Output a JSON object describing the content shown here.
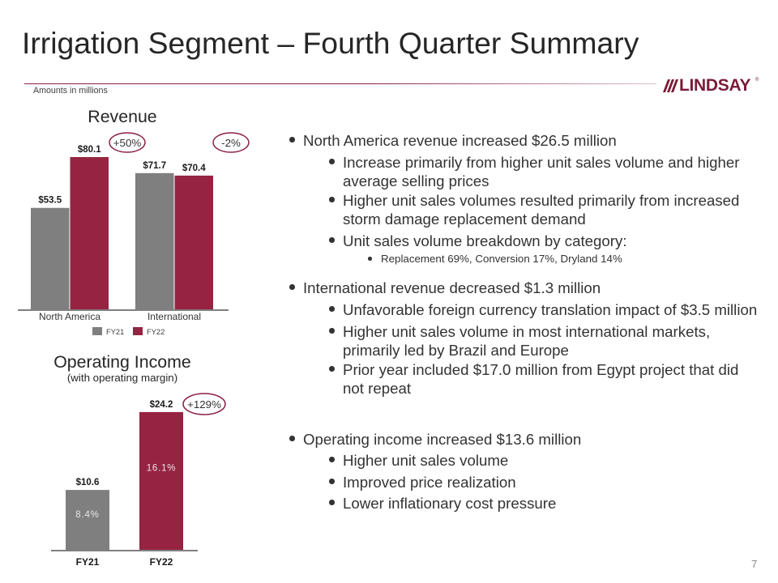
{
  "header": {
    "title": "Irrigation Segment – Fourth Quarter Summary",
    "units_note": "Amounts in millions"
  },
  "logo": {
    "text": "LINDSAY",
    "mark": "®",
    "color": "#7a1c38"
  },
  "footer": {
    "page_number": "7"
  },
  "bullets": [
    {
      "text": "North America revenue increased $26.5 million",
      "sub": [
        {
          "lines": [
            "Increase primarily from higher unit sales volume and higher",
            "average selling prices"
          ]
        },
        {
          "lines": [
            "Higher unit sales volumes resulted primarily from increased",
            "storm damage replacement demand"
          ]
        },
        {
          "lines": [
            "Unit sales volume breakdown by category:"
          ],
          "sub": [
            {
              "text": "Replacement 69%, Conversion 17%, Dryland 14%"
            }
          ]
        }
      ]
    },
    {
      "text": "International revenue decreased $1.3 million",
      "sub": [
        {
          "lines": [
            "Unfavorable foreign currency translation impact of $3.5 million"
          ]
        },
        {
          "lines": [
            "Higher unit sales volume in most international markets,",
            "primarily led by Brazil and Europe"
          ]
        },
        {
          "lines": [
            "Prior year included $17.0 million from Egypt project that did",
            "not repeat"
          ]
        }
      ]
    },
    {
      "text": "Operating income increased $13.6 million",
      "sub": [
        {
          "lines": [
            "Higher unit sales volume"
          ]
        },
        {
          "lines": [
            "Improved price realization"
          ]
        },
        {
          "lines": [
            "Lower inflationary cost pressure"
          ]
        }
      ]
    }
  ],
  "chart_data": [
    {
      "type": "bar",
      "title": "Revenue",
      "categories": [
        "North America",
        "International"
      ],
      "series": [
        {
          "name": "FY21",
          "color": "#7f7f7f",
          "values": [
            53.5,
            71.7
          ],
          "labels": [
            "$53.5",
            "$71.7"
          ]
        },
        {
          "name": "FY22",
          "color": "#962342",
          "values": [
            80.1,
            70.4
          ],
          "labels": [
            "$80.1",
            "$70.4"
          ]
        }
      ],
      "annotations": [
        "+50%",
        "-2%"
      ],
      "ylim": [
        0,
        100
      ],
      "legend": "bottom",
      "grid": false
    },
    {
      "type": "bar",
      "title": "Operating Income",
      "subtitle": "(with operating margin)",
      "categories": [
        "FY21",
        "FY22"
      ],
      "series": [
        {
          "values": [
            10.6,
            24.2
          ],
          "labels": [
            "$10.6",
            "$24.2"
          ],
          "inner_labels": [
            "8.4%",
            "16.1%"
          ],
          "colors": [
            "#7f7f7f",
            "#962342"
          ]
        }
      ],
      "annotations": [
        "+129%"
      ],
      "ylim": [
        0,
        30
      ],
      "grid": false
    }
  ]
}
